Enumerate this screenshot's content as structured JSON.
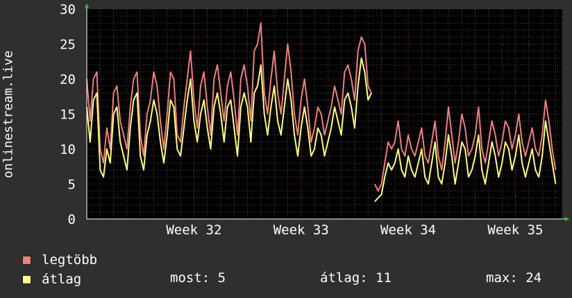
{
  "colors": {
    "background": "#2f2f2f",
    "plot_background": "#000000",
    "grid_major": "#8a2a2a",
    "grid_minor": "#4a4a4a",
    "axis": "#ffffff",
    "axis_arrow": "#22cc22",
    "series_max": "#f08080",
    "series_avg": "#ffff80"
  },
  "chart_data": {
    "type": "line",
    "ylabel": "onlinestream.live",
    "ylim": [
      0,
      30
    ],
    "yticks": [
      0,
      5,
      10,
      15,
      20,
      25,
      30
    ],
    "xlim": [
      0,
      35.5
    ],
    "xticks": [
      {
        "label": "Week 32",
        "x": 8
      },
      {
        "label": "Week 33",
        "x": 16
      },
      {
        "label": "Week 34",
        "x": 24
      },
      {
        "label": "Week 35",
        "x": 32
      }
    ],
    "grid": true,
    "series": [
      {
        "name": "legtöbb",
        "color": "#f08080",
        "segments": [
          [
            [
              0,
              20
            ],
            [
              0.25,
              14
            ],
            [
              0.5,
              20
            ],
            [
              0.75,
              21
            ],
            [
              1,
              10
            ],
            [
              1.25,
              8
            ],
            [
              1.5,
              13
            ],
            [
              1.75,
              10
            ],
            [
              2,
              18
            ],
            [
              2.25,
              19
            ],
            [
              2.5,
              14
            ],
            [
              2.75,
              12
            ],
            [
              3,
              10
            ],
            [
              3.25,
              16
            ],
            [
              3.5,
              20
            ],
            [
              3.75,
              21
            ],
            [
              4,
              12
            ],
            [
              4.25,
              9
            ],
            [
              4.5,
              15
            ],
            [
              4.75,
              17
            ],
            [
              5,
              21
            ],
            [
              5.25,
              19
            ],
            [
              5.5,
              14
            ],
            [
              5.75,
              10
            ],
            [
              6,
              15
            ],
            [
              6.25,
              21
            ],
            [
              6.5,
              20
            ],
            [
              6.75,
              12
            ],
            [
              7,
              11
            ],
            [
              7.25,
              16
            ],
            [
              7.5,
              20
            ],
            [
              7.75,
              24
            ],
            [
              8,
              17
            ],
            [
              8.25,
              13
            ],
            [
              8.5,
              19
            ],
            [
              8.75,
              21
            ],
            [
              9,
              16
            ],
            [
              9.25,
              12
            ],
            [
              9.5,
              20
            ],
            [
              9.75,
              22
            ],
            [
              10,
              18
            ],
            [
              10.25,
              14
            ],
            [
              10.5,
              19
            ],
            [
              10.75,
              21
            ],
            [
              11,
              17
            ],
            [
              11.25,
              12
            ],
            [
              11.5,
              20
            ],
            [
              11.75,
              22
            ],
            [
              12,
              19
            ],
            [
              12.25,
              14
            ],
            [
              12.5,
              24
            ],
            [
              12.75,
              25
            ],
            [
              13,
              28
            ],
            [
              13.25,
              18
            ],
            [
              13.5,
              15
            ],
            [
              13.75,
              20
            ],
            [
              14,
              24
            ],
            [
              14.25,
              18
            ],
            [
              14.5,
              15
            ],
            [
              14.75,
              20
            ],
            [
              15,
              25
            ],
            [
              15.25,
              21
            ],
            [
              15.5,
              15
            ],
            [
              15.75,
              12
            ],
            [
              16,
              17
            ],
            [
              16.25,
              20
            ],
            [
              16.5,
              16
            ],
            [
              16.75,
              11
            ],
            [
              17,
              13
            ],
            [
              17.25,
              16
            ],
            [
              17.5,
              15
            ],
            [
              17.75,
              12
            ],
            [
              18,
              14
            ],
            [
              18.25,
              16
            ],
            [
              18.5,
              19
            ],
            [
              18.75,
              17
            ],
            [
              19,
              15
            ],
            [
              19.25,
              21
            ],
            [
              19.5,
              22
            ],
            [
              19.75,
              20
            ],
            [
              20,
              17
            ],
            [
              20.25,
              24
            ],
            [
              20.5,
              26
            ],
            [
              20.75,
              25
            ],
            [
              21,
              19
            ],
            [
              21.25,
              18
            ]
          ],
          [
            [
              21.5,
              5
            ],
            [
              21.75,
              4
            ],
            [
              22,
              5
            ],
            [
              22.25,
              8
            ],
            [
              22.5,
              11
            ],
            [
              22.75,
              10
            ],
            [
              23,
              11
            ],
            [
              23.25,
              14
            ],
            [
              23.5,
              10
            ],
            [
              23.75,
              9
            ],
            [
              24,
              12
            ],
            [
              24.25,
              10
            ],
            [
              24.5,
              9
            ],
            [
              24.75,
              11
            ],
            [
              25,
              13
            ],
            [
              25.25,
              9
            ],
            [
              25.5,
              8
            ],
            [
              25.75,
              11
            ],
            [
              26,
              14
            ],
            [
              26.25,
              9
            ],
            [
              26.5,
              7
            ],
            [
              26.75,
              11
            ],
            [
              27,
              16
            ],
            [
              27.25,
              12
            ],
            [
              27.5,
              8
            ],
            [
              27.75,
              11
            ],
            [
              28,
              15
            ],
            [
              28.25,
              13
            ],
            [
              28.5,
              9
            ],
            [
              28.75,
              10
            ],
            [
              29,
              12
            ],
            [
              29.25,
              16
            ],
            [
              29.5,
              10
            ],
            [
              29.75,
              8
            ],
            [
              30,
              11
            ],
            [
              30.25,
              14
            ],
            [
              30.5,
              12
            ],
            [
              30.75,
              9
            ],
            [
              31,
              11
            ],
            [
              31.25,
              14
            ],
            [
              31.5,
              13
            ],
            [
              31.75,
              10
            ],
            [
              32,
              12
            ],
            [
              32.25,
              15
            ],
            [
              32.5,
              11
            ],
            [
              32.75,
              9
            ],
            [
              33,
              11
            ],
            [
              33.25,
              13
            ],
            [
              33.5,
              10
            ],
            [
              33.75,
              9
            ],
            [
              34,
              12
            ],
            [
              34.25,
              17
            ],
            [
              34.5,
              14
            ],
            [
              34.75,
              10
            ],
            [
              35,
              7
            ]
          ]
        ]
      },
      {
        "name": "átlag",
        "color": "#ffff80",
        "segments": [
          [
            [
              0,
              16
            ],
            [
              0.25,
              11
            ],
            [
              0.5,
              17
            ],
            [
              0.75,
              18
            ],
            [
              1,
              7
            ],
            [
              1.25,
              6
            ],
            [
              1.5,
              10
            ],
            [
              1.75,
              8
            ],
            [
              2,
              15
            ],
            [
              2.25,
              16
            ],
            [
              2.5,
              11
            ],
            [
              2.75,
              9
            ],
            [
              3,
              7
            ],
            [
              3.25,
              13
            ],
            [
              3.5,
              17
            ],
            [
              3.75,
              18
            ],
            [
              4,
              9
            ],
            [
              4.25,
              7
            ],
            [
              4.5,
              12
            ],
            [
              4.75,
              14
            ],
            [
              5,
              17
            ],
            [
              5.25,
              15
            ],
            [
              5.5,
              11
            ],
            [
              5.75,
              8
            ],
            [
              6,
              12
            ],
            [
              6.25,
              17
            ],
            [
              6.5,
              16
            ],
            [
              6.75,
              10
            ],
            [
              7,
              9
            ],
            [
              7.25,
              13
            ],
            [
              7.5,
              17
            ],
            [
              7.75,
              20
            ],
            [
              8,
              14
            ],
            [
              8.25,
              11
            ],
            [
              8.5,
              15
            ],
            [
              8.75,
              17
            ],
            [
              9,
              13
            ],
            [
              9.25,
              10
            ],
            [
              9.5,
              16
            ],
            [
              9.75,
              18
            ],
            [
              10,
              15
            ],
            [
              10.25,
              11
            ],
            [
              10.5,
              16
            ],
            [
              10.75,
              17
            ],
            [
              11,
              13
            ],
            [
              11.25,
              9
            ],
            [
              11.5,
              16
            ],
            [
              11.75,
              18
            ],
            [
              12,
              16
            ],
            [
              12.25,
              11
            ],
            [
              12.5,
              18
            ],
            [
              12.75,
              19
            ],
            [
              13,
              22
            ],
            [
              13.25,
              15
            ],
            [
              13.5,
              12
            ],
            [
              13.75,
              16
            ],
            [
              14,
              19
            ],
            [
              14.25,
              14
            ],
            [
              14.5,
              12
            ],
            [
              14.75,
              16
            ],
            [
              15,
              20
            ],
            [
              15.25,
              17
            ],
            [
              15.5,
              12
            ],
            [
              15.75,
              9
            ],
            [
              16,
              13
            ],
            [
              16.25,
              16
            ],
            [
              16.5,
              13
            ],
            [
              16.75,
              9
            ],
            [
              17,
              10
            ],
            [
              17.25,
              13
            ],
            [
              17.5,
              12
            ],
            [
              17.75,
              9
            ],
            [
              18,
              11
            ],
            [
              18.25,
              13
            ],
            [
              18.5,
              16
            ],
            [
              18.75,
              14
            ],
            [
              19,
              12
            ],
            [
              19.25,
              17
            ],
            [
              19.5,
              18
            ],
            [
              19.75,
              16
            ],
            [
              20,
              13
            ],
            [
              20.25,
              19
            ],
            [
              20.5,
              23
            ],
            [
              20.75,
              21
            ],
            [
              21,
              17
            ],
            [
              21.25,
              18
            ]
          ],
          [
            [
              21.5,
              2.5
            ],
            [
              21.75,
              3
            ],
            [
              22,
              3.5
            ],
            [
              22.25,
              6
            ],
            [
              22.5,
              8
            ],
            [
              22.75,
              7
            ],
            [
              23,
              8
            ],
            [
              23.25,
              10
            ],
            [
              23.5,
              7
            ],
            [
              23.75,
              6
            ],
            [
              24,
              9
            ],
            [
              24.25,
              7
            ],
            [
              24.5,
              6
            ],
            [
              24.75,
              8
            ],
            [
              25,
              10
            ],
            [
              25.25,
              6
            ],
            [
              25.5,
              5
            ],
            [
              25.75,
              8
            ],
            [
              26,
              11
            ],
            [
              26.25,
              6
            ],
            [
              26.5,
              5
            ],
            [
              26.75,
              8
            ],
            [
              27,
              12
            ],
            [
              27.25,
              9
            ],
            [
              27.5,
              5
            ],
            [
              27.75,
              8
            ],
            [
              28,
              11
            ],
            [
              28.25,
              10
            ],
            [
              28.5,
              6
            ],
            [
              28.75,
              7
            ],
            [
              29,
              9
            ],
            [
              29.25,
              12
            ],
            [
              29.5,
              7
            ],
            [
              29.75,
              5
            ],
            [
              30,
              8
            ],
            [
              30.25,
              11
            ],
            [
              30.5,
              9
            ],
            [
              30.75,
              6
            ],
            [
              31,
              8
            ],
            [
              31.25,
              11
            ],
            [
              31.5,
              10
            ],
            [
              31.75,
              7
            ],
            [
              32,
              9
            ],
            [
              32.25,
              12
            ],
            [
              32.5,
              8
            ],
            [
              32.75,
              6
            ],
            [
              33,
              8
            ],
            [
              33.25,
              10
            ],
            [
              33.5,
              7
            ],
            [
              33.75,
              6
            ],
            [
              34,
              9
            ],
            [
              34.25,
              14
            ],
            [
              34.5,
              11
            ],
            [
              34.75,
              8
            ],
            [
              35,
              5
            ]
          ]
        ]
      }
    ]
  },
  "legend": {
    "items": [
      {
        "label": "legtöbb",
        "color": "#f08080"
      },
      {
        "label": "átlag",
        "color": "#ffff80"
      }
    ],
    "stats": {
      "current": "most: 5",
      "average": "átlag: 11",
      "max": "max: 24"
    }
  }
}
